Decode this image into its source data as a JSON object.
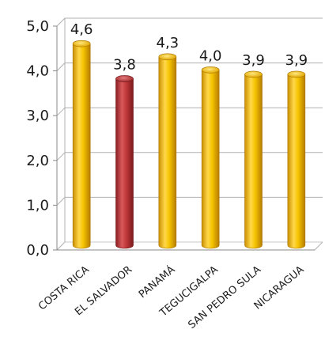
{
  "chart_data": {
    "type": "bar",
    "categories": [
      "COSTA RICA",
      "EL SALVADOR",
      "PANAMÁ",
      "TEGUCIGALPA",
      "SAN PEDRO SULA",
      "NICARAGUA"
    ],
    "values": [
      4.6,
      3.8,
      4.3,
      4.0,
      3.9,
      3.9
    ],
    "value_labels": [
      "4,6",
      "3,8",
      "4,3",
      "4,0",
      "3,9",
      "3,9"
    ],
    "ylim": [
      0,
      5
    ],
    "yticks": [
      0,
      1,
      2,
      3,
      4,
      5
    ],
    "ytick_labels": [
      "0,0",
      "1,0",
      "2,0",
      "3,0",
      "4,0",
      "5,0"
    ],
    "grid": true,
    "bar_colors": [
      "#f5c400",
      "#c0383a",
      "#f5c400",
      "#f5c400",
      "#f5c400",
      "#f5c400"
    ],
    "title": "",
    "xlabel": "",
    "ylabel": ""
  }
}
